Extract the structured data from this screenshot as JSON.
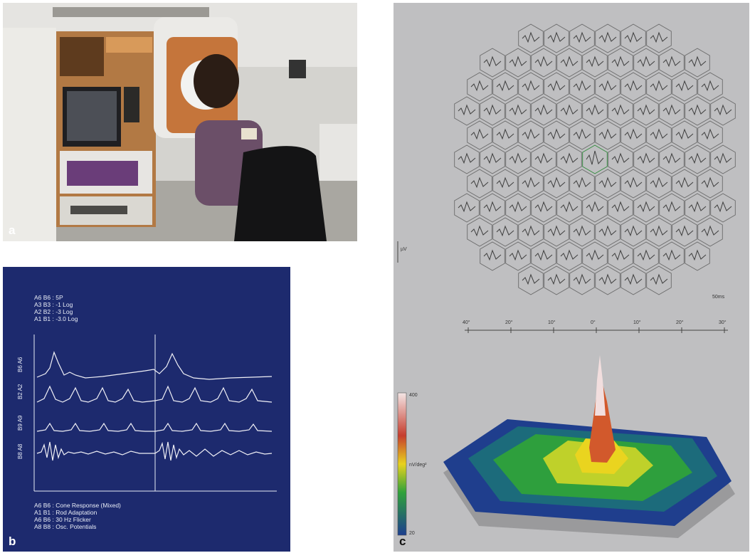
{
  "figure": {
    "panels": [
      {
        "label": "a"
      },
      {
        "label": "b"
      },
      {
        "label": "c"
      }
    ]
  },
  "erg": {
    "header_lines": [
      "A6 B6 : 5P",
      "A3 B3 : -1 Log",
      "A2 B2 : -3 Log",
      "A1 B1 : -3.0 Log"
    ],
    "row_labels": [
      "B6 A6",
      "B2 A2",
      "B9 A9",
      "B8 A8"
    ],
    "legend_lines": [
      "A6 B6 : Cone Response (Mixed)",
      "A1 B1 : Rod Adaptation",
      "A6 B6 : 30 Hz Flicker",
      "A8 B8 : Osc. Potentials"
    ]
  },
  "mferg": {
    "scale_label": "µV",
    "time_label": "50ms",
    "degree_ticks": [
      "40°",
      "20°",
      "10°",
      "0°",
      "10°",
      "20°",
      "30°"
    ],
    "colorbar_ticks": [
      "400",
      "nV/deg²",
      "20"
    ],
    "colors": {
      "bg": "#bfbfc1",
      "trace": "#4a4a4a",
      "peak_high": "#f4e6e6",
      "peak_red": "#c63d2e",
      "mid_yellow": "#e8d21e",
      "mid_green": "#2fa23a",
      "low_blue": "#1d3f8f"
    }
  }
}
